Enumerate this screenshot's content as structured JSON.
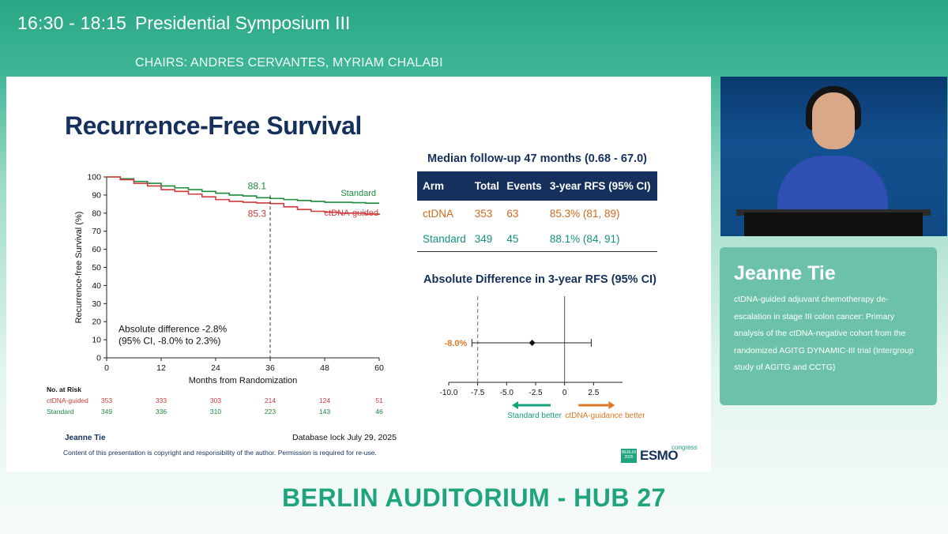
{
  "header": {
    "time": "16:30 - 18:15",
    "session": "Presidential Symposium III",
    "chairs": "CHAIRS: ANDRES CERVANTES, MYRIAM CHALABI"
  },
  "slide": {
    "title": "Recurrence-Free Survival",
    "followup": "Median follow-up 47 months (0.68 - 67.0)",
    "forest_title": "Absolute Difference in 3-year RFS (95% CI)",
    "speaker": "Jeanne Tie",
    "database_lock": "Database lock July 29, 2025",
    "copyright": "Content of this presentation is copyright and responsibility of the author. Permission is required for re-use.",
    "logo": {
      "top": "BERLIN 2025",
      "word": "ESMO",
      "suffix": "congress"
    },
    "table": {
      "headers": [
        "Arm",
        "Total",
        "Events",
        "3-year RFS (95% CI)"
      ],
      "rows": [
        [
          "ctDNA",
          "353",
          "63",
          "85.3% (81, 89)"
        ],
        [
          "Standard",
          "349",
          "45",
          "88.1% (84, 91)"
        ]
      ]
    }
  },
  "chart_data": [
    {
      "type": "line",
      "title": "",
      "xlabel": "Months from Randomization",
      "ylabel": "Recurrence-free Survival (%)",
      "xlim": [
        0,
        60
      ],
      "ylim": [
        0,
        100
      ],
      "xticks": [
        0,
        12,
        24,
        36,
        48,
        60
      ],
      "yticks": [
        0,
        10,
        20,
        30,
        40,
        50,
        60,
        70,
        80,
        90,
        100
      ],
      "series": [
        {
          "name": "Standard",
          "color": "#1e8a3c",
          "points": [
            [
              0,
              100
            ],
            [
              3,
              99
            ],
            [
              6,
              97.5
            ],
            [
              9,
              96.5
            ],
            [
              12,
              95
            ],
            [
              15,
              94
            ],
            [
              18,
              93
            ],
            [
              21,
              92
            ],
            [
              24,
              91
            ],
            [
              27,
              90
            ],
            [
              30,
              89.5
            ],
            [
              33,
              88.5
            ],
            [
              36,
              88.1
            ],
            [
              39,
              87.5
            ],
            [
              42,
              87
            ],
            [
              45,
              86.5
            ],
            [
              48,
              86
            ],
            [
              51,
              86
            ],
            [
              54,
              85.8
            ],
            [
              57,
              85.5
            ],
            [
              60,
              85.5
            ]
          ]
        },
        {
          "name": "ctDNA-guided",
          "color": "#d03a3a",
          "points": [
            [
              0,
              100
            ],
            [
              3,
              98.5
            ],
            [
              6,
              96.5
            ],
            [
              9,
              95
            ],
            [
              12,
              93
            ],
            [
              15,
              92
            ],
            [
              18,
              90.5
            ],
            [
              21,
              89
            ],
            [
              24,
              87.5
            ],
            [
              27,
              86.5
            ],
            [
              30,
              86
            ],
            [
              33,
              85.6
            ],
            [
              36,
              85.3
            ],
            [
              39,
              83.5
            ],
            [
              42,
              82
            ],
            [
              45,
              81
            ],
            [
              48,
              80.5
            ],
            [
              51,
              80
            ],
            [
              54,
              80
            ],
            [
              57,
              79.5
            ],
            [
              60,
              79
            ]
          ]
        }
      ],
      "annotations": {
        "standard_value": "88.1",
        "ctdna_value": "85.3",
        "marker_x": 36,
        "abs_diff_line1": "Absolute difference -2.8%",
        "abs_diff_line2": "(95% CI, -8.0% to 2.3%)"
      },
      "risk_table": {
        "title": "No. at Risk",
        "rows": [
          {
            "label": "ctDNA-guided",
            "color": "#d03a3a",
            "values": [
              "353",
              "333",
              "303",
              "214",
              "124",
              "51"
            ]
          },
          {
            "label": "Standard",
            "color": "#1e8a3c",
            "values": [
              "349",
              "336",
              "310",
              "223",
              "143",
              "46"
            ]
          }
        ]
      }
    },
    {
      "type": "scatter",
      "title": "Absolute Difference in 3-year RFS (95% CI)",
      "xlim": [
        -10,
        5
      ],
      "xticks": [
        "-10.0",
        "-7.5",
        "-5.0",
        "-2.5",
        "0",
        "2.5"
      ],
      "estimate": -2.8,
      "ci": [
        -8.0,
        2.3
      ],
      "margin_line": -7.5,
      "ci_low_label": "-8.0%",
      "left_label": "Standard better",
      "right_label": "ctDNA-guidance better",
      "left_color": "#14a07a",
      "right_color": "#e07828"
    }
  ],
  "video": {
    "description": "speaker at podium"
  },
  "info": {
    "name": "Jeanne Tie",
    "description": "ctDNA-guided adjuvant chemotherapy de-escalation in stage III colon cancer: Primary analysis of the ctDNA-negative cohort from the randomized AGITG DYNAMIC-III trial (Intergroup study of AGITG and CCTG)"
  },
  "venue": "BERLIN AUDITORIUM - HUB 27"
}
